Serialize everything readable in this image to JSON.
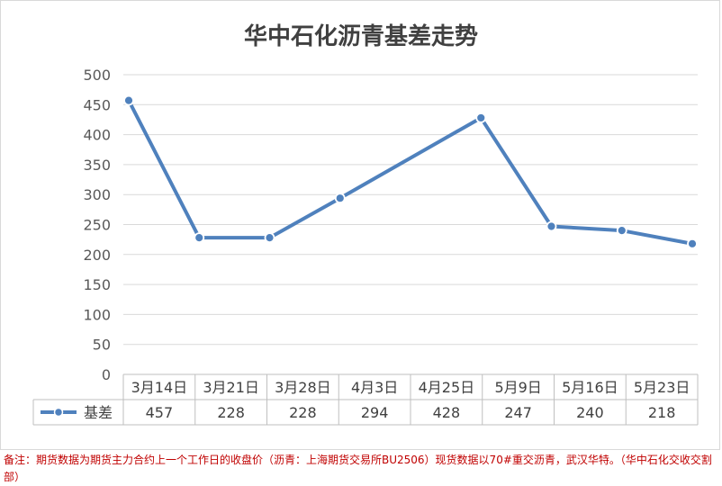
{
  "chart_data": {
    "type": "line",
    "title": "华中石化沥青基差走势",
    "categories": [
      "3月14日",
      "3月21日",
      "3月28日",
      "4月3日",
      "4月25日",
      "5月9日",
      "5月16日",
      "5月23日"
    ],
    "x_positions": [
      0,
      1,
      2,
      3,
      5,
      6,
      7,
      8
    ],
    "series": [
      {
        "name": "基差",
        "values": [
          457,
          228,
          228,
          294,
          428,
          247,
          240,
          218
        ],
        "color": "#4f81bd"
      }
    ],
    "ylim": [
      0,
      500
    ],
    "yticks": [
      0,
      50,
      100,
      150,
      200,
      250,
      300,
      350,
      400,
      450,
      500
    ],
    "grid": true,
    "legend": "data-table"
  },
  "footnote": "备注：期货数据为期货主力合约上一个工作日的收盘价（沥青：上海期货交易所BU2506）现货数据以70#重交沥青，武汉华特。（华中石化交收交割部）"
}
